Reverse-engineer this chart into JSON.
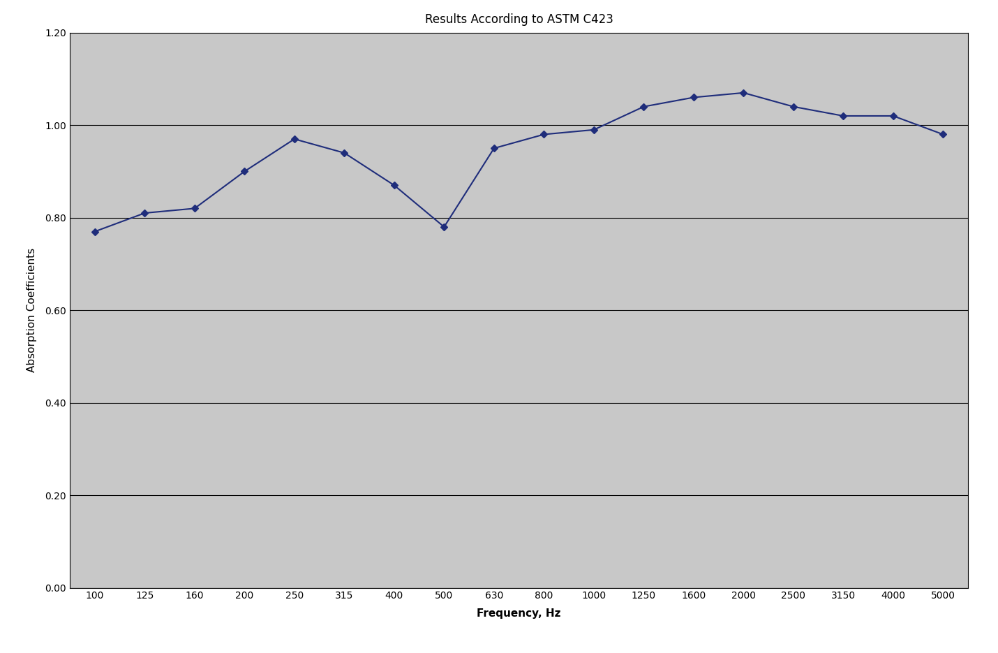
{
  "frequencies": [
    100,
    125,
    160,
    200,
    250,
    315,
    400,
    500,
    630,
    800,
    1000,
    1250,
    1600,
    2000,
    2500,
    3150,
    4000,
    5000
  ],
  "absorption": [
    0.77,
    0.81,
    0.82,
    0.9,
    0.97,
    0.94,
    0.87,
    0.78,
    0.95,
    0.98,
    0.99,
    1.04,
    1.06,
    1.07,
    1.04,
    1.02,
    1.02,
    0.98
  ],
  "title": "Results According to ASTM C423",
  "xlabel": "Frequency, Hz",
  "ylabel": "Absorption Coefficients",
  "ylim": [
    0.0,
    1.2
  ],
  "yticks": [
    0.0,
    0.2,
    0.4,
    0.6,
    0.8,
    1.0,
    1.2
  ],
  "line_color": "#1f2d7b",
  "marker_color": "#1f2d7b",
  "fig_bg_color": "#ffffff",
  "plot_bg_color": "#c8c8c8",
  "title_fontsize": 12,
  "label_fontsize": 11,
  "tick_fontsize": 10
}
